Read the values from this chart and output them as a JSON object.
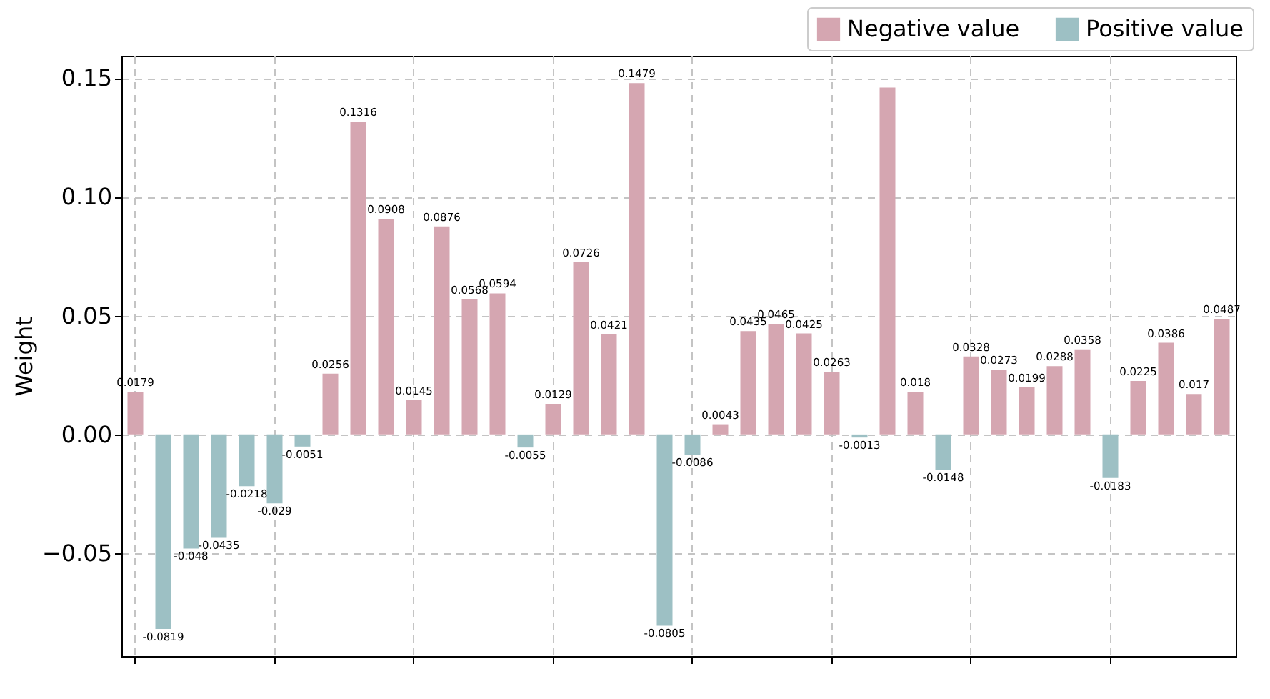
{
  "chart_data": {
    "type": "bar",
    "ylabel": "Weight",
    "categories": [
      null,
      null,
      null,
      null,
      null,
      null,
      null,
      null,
      null,
      null,
      null,
      null,
      null,
      null,
      null,
      null,
      null,
      null,
      null,
      null,
      null,
      null,
      null,
      null,
      null,
      null,
      null,
      null,
      null,
      null,
      null,
      null,
      null,
      null,
      null,
      null,
      null,
      null,
      null,
      null
    ],
    "ylim": [
      -0.0933,
      0.1594
    ],
    "yticks": [
      {
        "value": -0.05,
        "label": "−0.05"
      },
      {
        "value": 0,
        "label": "0.00"
      },
      {
        "value": 0.05,
        "label": "0.05"
      },
      {
        "value": 0.1,
        "label": "0.10"
      },
      {
        "value": 0.15,
        "label": "0.15"
      }
    ],
    "series": [
      {
        "name": "Negative value",
        "color": "#d5a6b1",
        "values": [
          0.0179,
          null,
          null,
          null,
          null,
          null,
          null,
          0.0256,
          0.1316,
          0.0908,
          0.0145,
          0.0876,
          0.0568,
          0.0594,
          null,
          0.0129,
          0.0726,
          0.0421,
          0.1479,
          null,
          null,
          0.0043,
          0.0435,
          0.0465,
          0.0425,
          0.0263,
          null,
          0.146,
          0.018,
          null,
          0.0328,
          0.0273,
          0.0199,
          0.0288,
          0.0358,
          null,
          0.0225,
          0.0386,
          0.017,
          0.0487
        ],
        "value_labels": [
          "0.0179",
          null,
          null,
          null,
          null,
          null,
          null,
          "0.0256",
          "0.1316",
          "0.0908",
          "0.0145",
          "0.0876",
          "0.0568",
          "0.0594",
          null,
          "0.0129",
          "0.0726",
          "0.0421",
          "0.1479",
          null,
          null,
          "0.0043",
          "0.0435",
          "0.0465",
          "0.0425",
          "0.0263",
          null,
          null,
          "0.018",
          null,
          "0.0328",
          "0.0273",
          "0.0199",
          "0.0288",
          "0.0358",
          null,
          "0.0225",
          "0.0386",
          "0.017",
          "0.0487"
        ]
      },
      {
        "name": "Positive value",
        "color": "#9dc0c4",
        "values": [
          null,
          -0.0819,
          -0.048,
          -0.0435,
          -0.0218,
          -0.029,
          -0.0051,
          null,
          null,
          null,
          null,
          null,
          null,
          null,
          -0.0055,
          null,
          null,
          null,
          null,
          -0.0805,
          -0.0086,
          null,
          null,
          null,
          null,
          null,
          -0.0013,
          null,
          null,
          -0.0148,
          null,
          null,
          null,
          null,
          null,
          -0.0183,
          null,
          null,
          null,
          null
        ],
        "value_labels": [
          null,
          "-0.0819",
          "-0.048",
          "-0.0435",
          "-0.0218",
          "-0.029",
          "-0.0051",
          null,
          null,
          null,
          null,
          null,
          null,
          null,
          "-0.0055",
          null,
          null,
          null,
          null,
          "-0.0805",
          "-0.0086",
          null,
          null,
          null,
          null,
          null,
          "-0.0013",
          null,
          null,
          "-0.0148",
          null,
          null,
          null,
          null,
          null,
          "-0.0183",
          null,
          null,
          null,
          null
        ]
      }
    ],
    "grid": true,
    "legend": "top right",
    "tick_labels": "y"
  }
}
